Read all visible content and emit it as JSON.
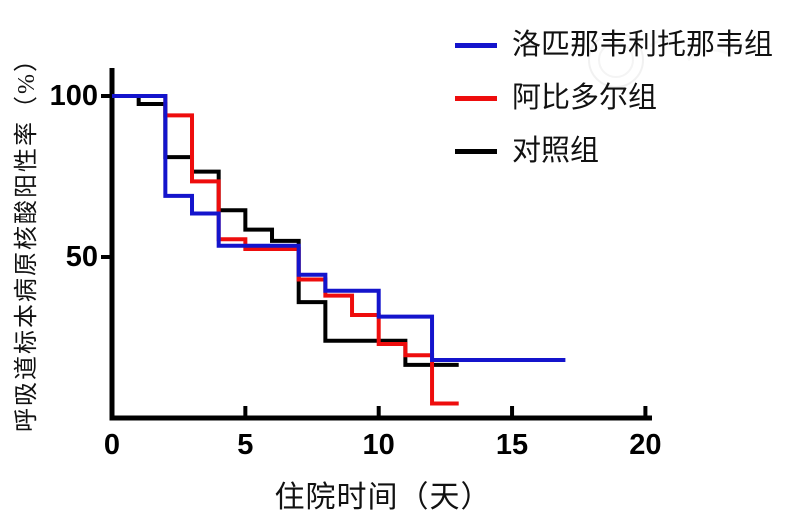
{
  "chart_data": {
    "type": "line",
    "subtype": "step-survival",
    "title": "",
    "xlabel": "住院时间（天）",
    "ylabel": "呼吸道标本病原核酸阳性率（%）",
    "xlim": [
      0,
      20
    ],
    "ylim": [
      0,
      100
    ],
    "x_ticks": [
      "0",
      "5",
      "10",
      "15",
      "20"
    ],
    "y_ticks": [
      "50",
      "100"
    ],
    "grid": false,
    "legend_position": "top-right",
    "axis_color": "#000000",
    "series": [
      {
        "name": "洛匹那韦利托那韦组",
        "color": "#1414cc",
        "points": [
          [
            0,
            100
          ],
          [
            2,
            69
          ],
          [
            3,
            63.5
          ],
          [
            4,
            53.5
          ],
          [
            7,
            44.5
          ],
          [
            8,
            39.5
          ],
          [
            10,
            31.5
          ],
          [
            12,
            18
          ],
          [
            17,
            18
          ]
        ]
      },
      {
        "name": "阿比多尔组",
        "color": "#ee0d0d",
        "points": [
          [
            0,
            100
          ],
          [
            2,
            94
          ],
          [
            3,
            73.5
          ],
          [
            4,
            55.5
          ],
          [
            5,
            52.5
          ],
          [
            7,
            43
          ],
          [
            8,
            38
          ],
          [
            9,
            32
          ],
          [
            10,
            23
          ],
          [
            11,
            19.5
          ],
          [
            12,
            4.5
          ],
          [
            13,
            4.5
          ]
        ]
      },
      {
        "name": "对照组",
        "color": "#000000",
        "points": [
          [
            0,
            100
          ],
          [
            1,
            97.5
          ],
          [
            2,
            81
          ],
          [
            3,
            76.5
          ],
          [
            4,
            64.5
          ],
          [
            5,
            58.5
          ],
          [
            6,
            55
          ],
          [
            7,
            36
          ],
          [
            8,
            24
          ],
          [
            11,
            16.5
          ],
          [
            13,
            16.5
          ]
        ]
      }
    ]
  }
}
